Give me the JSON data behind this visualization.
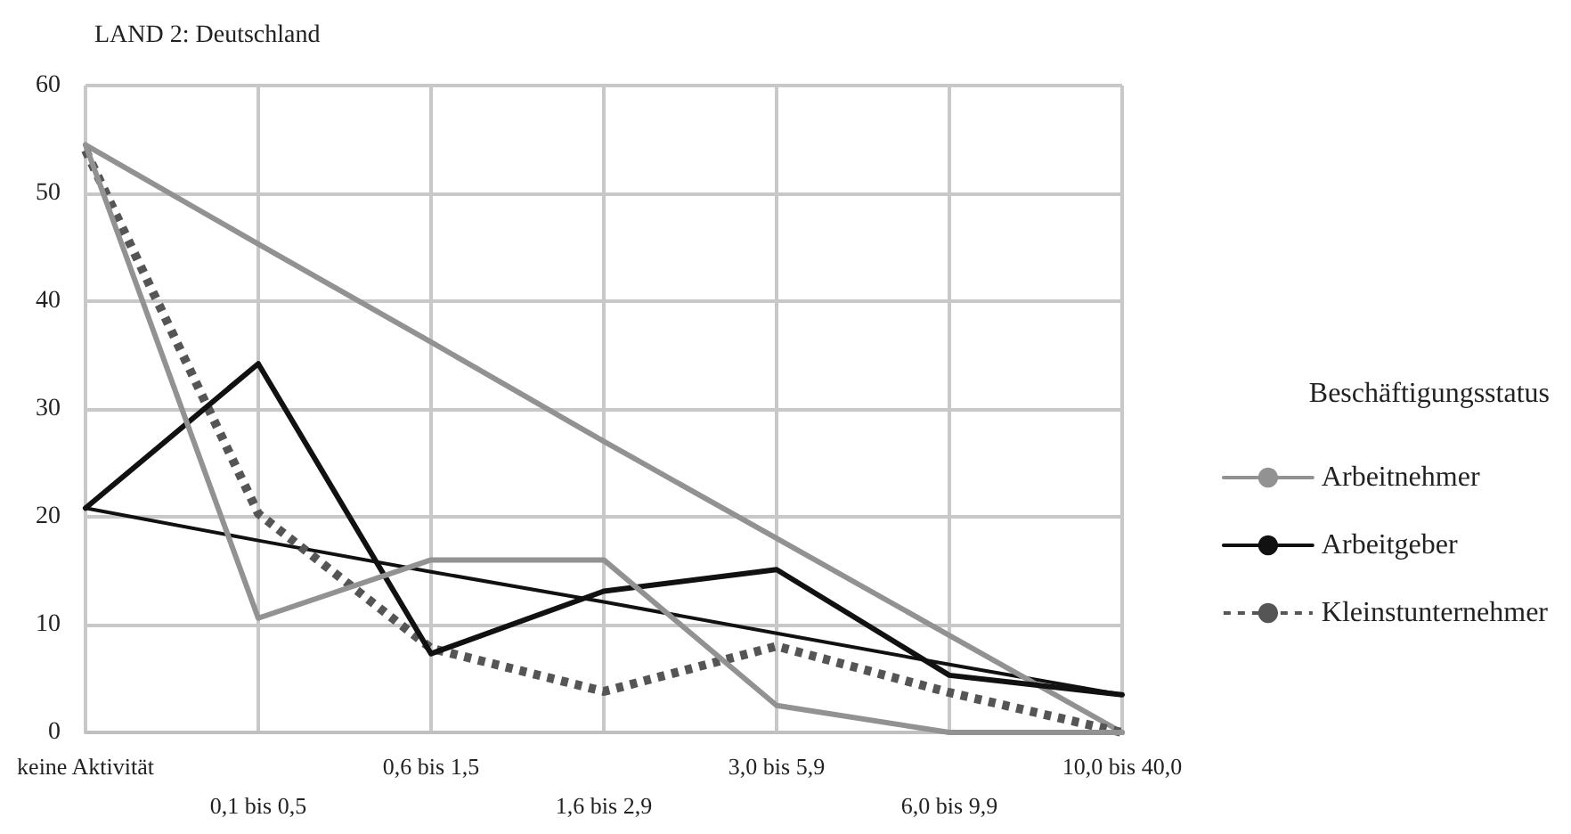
{
  "chart_data": {
    "type": "line",
    "title": "LAND 2: Deutschland",
    "categories": [
      "keine Aktivität",
      "0,1 bis 0,5",
      "0,6 bis 1,5",
      "1,6 bis 2,9",
      "3,0 bis 5,9",
      "6,0 bis 9,9",
      "10,0 bis 40,0"
    ],
    "series": [
      {
        "name": "Arbeitnehmer",
        "color": "#929292",
        "line_style": "solid",
        "values": [
          54.5,
          10.6,
          16,
          16,
          2.5,
          0,
          0
        ]
      },
      {
        "name": "Arbeitgeber",
        "color": "#111111",
        "line_style": "solid",
        "values": [
          20.8,
          34.2,
          7.3,
          13.1,
          15.1,
          5.3,
          3.5
        ]
      },
      {
        "name": "Kleinstunternehmer",
        "color": "#555555",
        "line_style": "dotted",
        "values": [
          54,
          20.3,
          7.8,
          3.8,
          8,
          3.7,
          0
        ]
      },
      {
        "color": "#929292",
        "line_style": "solid",
        "values": [
          54.5,
          45.3,
          36.2,
          27,
          18,
          9,
          0
        ]
      },
      {
        "color": "#111111",
        "line_style": "solid",
        "values": [
          20.8,
          17.8,
          14.9,
          12.1,
          9.2,
          6.3,
          3.5
        ]
      }
    ],
    "ylim": [
      0,
      60
    ],
    "yticks": [
      0,
      10,
      20,
      30,
      40,
      50,
      60
    ],
    "grid": true,
    "legend": "right",
    "legend_title": "Beschäftigungsstatus",
    "marker": "none"
  }
}
